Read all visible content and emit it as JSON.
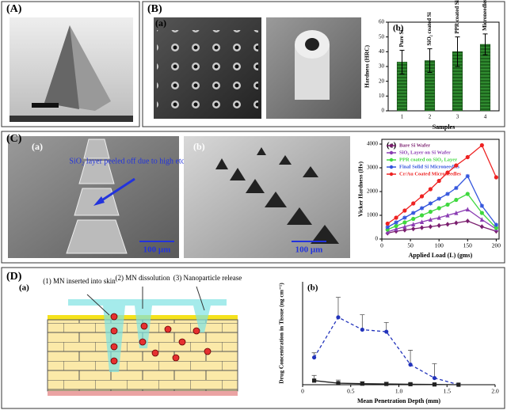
{
  "panels": {
    "a": "(A)",
    "b": "(B)",
    "c": "(C)",
    "d": "(D)"
  },
  "sem": {
    "b_label": "(a)",
    "c_a_label": "(a)",
    "c_b_label": "(b)",
    "c_note": "SiO₂ layer peeled off due to high etchant temperature",
    "scale_a": "100 μm",
    "scale_b": "100 μm"
  },
  "diagram": {
    "label": "(a)",
    "step1": "(1) MN inserted into skin",
    "step2": "(2) MN dissolution",
    "step3": "(3) Nanoparticle release"
  },
  "chart_data": [
    {
      "type": "bar",
      "title": "(b)",
      "y_label": "Hardness (HRC)",
      "x_label": "Samples",
      "categories": [
        "1",
        "2",
        "3",
        "4"
      ],
      "bar_labels": [
        "Pure Si",
        "SiO₂ coated Si",
        "PPR coated SiO₂",
        "Microneedles"
      ],
      "values": [
        33,
        34,
        40,
        45
      ],
      "errors": [
        8,
        8,
        10,
        7
      ],
      "color": "#2f8a2f",
      "ylim": [
        0,
        60
      ],
      "yticks": [
        0,
        10,
        20,
        30,
        40,
        50,
        60
      ]
    },
    {
      "type": "line",
      "title": "(c)",
      "y_label": "Vicker Hardness (Hv)",
      "x_label": "Applied Load (L) (gms)",
      "frame": true,
      "x": [
        10,
        25,
        40,
        55,
        70,
        85,
        100,
        115,
        130,
        150,
        175,
        200
      ],
      "xlim": [
        0,
        205
      ],
      "xticks": [
        0,
        50,
        100,
        150,
        200
      ],
      "ylim": [
        0,
        4200
      ],
      "yticks": [
        0,
        1000,
        2000,
        3000,
        4000
      ],
      "series": [
        {
          "name": "Bare Si Wafer",
          "color": "#7a1e6e",
          "marker": "diamond",
          "values": [
            250,
            330,
            380,
            430,
            480,
            520,
            570,
            620,
            680,
            760,
            520,
            330
          ]
        },
        {
          "name": "SiO₂ Layer on Si Wafer",
          "color": "#8b3db3",
          "marker": "triangle",
          "values": [
            300,
            420,
            520,
            620,
            720,
            820,
            900,
            1000,
            1100,
            1250,
            820,
            420
          ]
        },
        {
          "name": "PPR coated on SiO₂ Layer",
          "color": "#3fd83f",
          "marker": "circle",
          "values": [
            400,
            550,
            700,
            850,
            1000,
            1150,
            1300,
            1450,
            1650,
            1900,
            1100,
            470
          ]
        },
        {
          "name": "Final Solid Si Microneedles",
          "color": "#3355dd",
          "marker": "star",
          "values": [
            500,
            700,
            900,
            1100,
            1300,
            1500,
            1700,
            1900,
            2150,
            2650,
            1400,
            600
          ]
        },
        {
          "name": "Cr/Au Coated Microneedles",
          "color": "#ee2222",
          "marker": "circle",
          "values": [
            650,
            900,
            1200,
            1500,
            1800,
            2100,
            2450,
            2800,
            3100,
            3450,
            3950,
            2600
          ]
        }
      ]
    },
    {
      "type": "line",
      "title": "(b)",
      "y_label": "Drug Concentration in Tissue (ng cm⁻¹)",
      "x_label": "Mean Penetration Depth (mm)",
      "frame": false,
      "x": [
        0.12,
        0.37,
        0.62,
        0.87,
        1.12,
        1.37,
        1.62
      ],
      "xlim": [
        0,
        2.0
      ],
      "xticks": [
        0,
        0.5,
        {
          "value": 1,
          "label": "1.0"
        },
        1.5,
        {
          "value": 2,
          "label": "2.0"
        }
      ],
      "ylim": [
        0,
        2000
      ],
      "series": [
        {
          "color": "#2233bb",
          "marker": "circle",
          "dash": true,
          "values": [
            530,
            1310,
            1070,
            1030,
            390,
            130,
            0
          ],
          "errors": [
            90,
            390,
            290,
            180,
            280,
            280,
            0
          ]
        },
        {
          "color": "#222222",
          "marker": "square",
          "dash": false,
          "values": [
            80,
            30,
            20,
            15,
            10,
            5,
            0
          ],
          "errors": [
            100,
            60,
            40,
            30,
            20,
            10,
            0
          ]
        }
      ]
    }
  ]
}
